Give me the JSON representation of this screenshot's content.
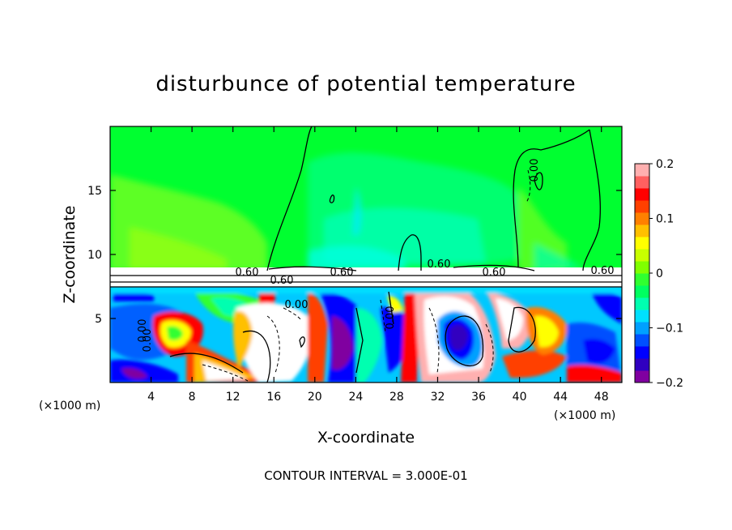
{
  "chart_data": {
    "type": "heatmap",
    "title": "disturbunce of potential temperature",
    "xlabel": "X-coordinate",
    "ylabel": "Z-coordinate",
    "x_unit": "(×1000 m)",
    "y_unit": "(×1000 m)",
    "xlim": [
      0,
      50
    ],
    "ylim": [
      0,
      20
    ],
    "x_ticks": [
      4,
      8,
      12,
      16,
      20,
      24,
      28,
      32,
      36,
      40,
      44,
      48
    ],
    "y_ticks": [
      5,
      10,
      15
    ],
    "colorbar": {
      "range": [
        -0.2,
        0.2
      ],
      "ticks": [
        0.2,
        0.1,
        0,
        -0.1,
        -0.2
      ],
      "tick_labels": [
        "0.2",
        "0.1",
        "0",
        "−0.1",
        "−0.2"
      ],
      "colors": [
        "#8000a0",
        "#3000c0",
        "#0000ff",
        "#0050ff",
        "#00a0ff",
        "#00e0ff",
        "#00ffb0",
        "#00ff60",
        "#30ff30",
        "#80ff00",
        "#c8ff00",
        "#ffff00",
        "#ffc000",
        "#ff8000",
        "#ff4000",
        "#ff0000",
        "#ff6060",
        "#ffb0b0"
      ]
    },
    "contour_labels": [
      "0.60",
      "0.60",
      "0.60",
      "0.60",
      "0.60",
      "0.60",
      "0.00",
      "0.00",
      "0.00",
      "0.00",
      "0.00"
    ],
    "footnote": "CONTOUR INTERVAL = 3.000E-01"
  }
}
